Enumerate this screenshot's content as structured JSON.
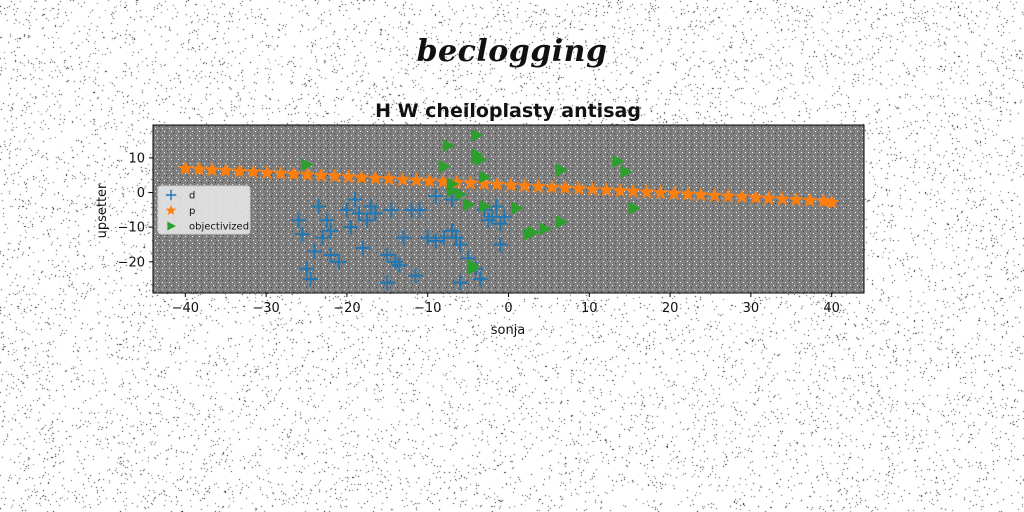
{
  "figure": {
    "suptitle": "beclogging"
  },
  "chart_data": {
    "type": "scatter",
    "title": "H W cheiloplasty antisag",
    "xlabel": "sonja",
    "ylabel": "upsetter",
    "xlim": [
      -44,
      44
    ],
    "ylim": [
      -29,
      19.5
    ],
    "xticks": [
      -40,
      -30,
      -20,
      -10,
      0,
      10,
      20,
      30,
      40
    ],
    "yticks": [
      -20,
      -10,
      0,
      10
    ],
    "plot_background": "#808080",
    "grid": false,
    "legend_position": "center-left",
    "series": [
      {
        "name": "d",
        "marker": "plus",
        "color": "#1f77b4",
        "points": [
          [
            -26,
            -8
          ],
          [
            -25.5,
            -12
          ],
          [
            -25,
            -22
          ],
          [
            -24.5,
            -25
          ],
          [
            -24,
            -17
          ],
          [
            -23.5,
            -4
          ],
          [
            -23,
            -13
          ],
          [
            -22.5,
            -8
          ],
          [
            -22,
            -11
          ],
          [
            -22,
            -18
          ],
          [
            -21,
            -20
          ],
          [
            -20,
            -5
          ],
          [
            -19.5,
            -10
          ],
          [
            -19,
            -2
          ],
          [
            -18.5,
            -6
          ],
          [
            -18,
            -16
          ],
          [
            -17.5,
            -8
          ],
          [
            -17,
            -4
          ],
          [
            -16.5,
            -6
          ],
          [
            -15,
            -18
          ],
          [
            -15,
            -26
          ],
          [
            -14.5,
            -5
          ],
          [
            -14,
            -20
          ],
          [
            -13.5,
            -21
          ],
          [
            -13,
            -13
          ],
          [
            -12,
            -5
          ],
          [
            -11.5,
            -24
          ],
          [
            -11,
            -5
          ],
          [
            -10,
            -13
          ],
          [
            -9,
            -14
          ],
          [
            -8,
            -13
          ],
          [
            -7,
            -11
          ],
          [
            -6.5,
            -13
          ],
          [
            -6,
            -15
          ],
          [
            -6,
            -26
          ],
          [
            -5,
            -19
          ],
          [
            -4,
            -22
          ],
          [
            -3.5,
            -25
          ],
          [
            -3,
            -5
          ],
          [
            -2.5,
            -8
          ],
          [
            -2,
            -7
          ],
          [
            -1.5,
            -4
          ],
          [
            -1,
            -15
          ],
          [
            -1,
            -9
          ],
          [
            -0.5,
            -7
          ],
          [
            -7,
            -2
          ],
          [
            -9,
            -1
          ]
        ]
      },
      {
        "name": "p",
        "marker": "star",
        "color": "#ff7f0e",
        "points": [
          [
            -40,
            6.9
          ],
          [
            -38.3,
            6.7
          ],
          [
            -36.7,
            6.5
          ],
          [
            -35,
            6.3
          ],
          [
            -33.3,
            6.1
          ],
          [
            -31.6,
            5.9
          ],
          [
            -29.9,
            5.7
          ],
          [
            -28.2,
            5.5
          ],
          [
            -26.6,
            5.3
          ],
          [
            -24.9,
            5.1
          ],
          [
            -23.2,
            4.9
          ],
          [
            -21.5,
            4.7
          ],
          [
            -19.8,
            4.5
          ],
          [
            -18.2,
            4.3
          ],
          [
            -16.5,
            4.1
          ],
          [
            -14.8,
            3.9
          ],
          [
            -13.1,
            3.7
          ],
          [
            -11.4,
            3.5
          ],
          [
            -9.8,
            3.3
          ],
          [
            -8.1,
            3.1
          ],
          [
            -6.4,
            2.9
          ],
          [
            -4.7,
            2.7
          ],
          [
            -3,
            2.5
          ],
          [
            -1.4,
            2.3
          ],
          [
            0.3,
            2.1
          ],
          [
            2,
            1.9
          ],
          [
            3.7,
            1.7
          ],
          [
            5.4,
            1.5
          ],
          [
            7,
            1.3
          ],
          [
            8.7,
            1.1
          ],
          [
            10.4,
            0.9
          ],
          [
            12.1,
            0.7
          ],
          [
            13.8,
            0.5
          ],
          [
            15.4,
            0.3
          ],
          [
            17.1,
            0.1
          ],
          [
            18.8,
            -0.1
          ],
          [
            20.5,
            -0.3
          ],
          [
            22.2,
            -0.5
          ],
          [
            23.8,
            -0.7
          ],
          [
            25.5,
            -0.9
          ],
          [
            27.2,
            -1.1
          ],
          [
            28.9,
            -1.3
          ],
          [
            30.6,
            -1.5
          ],
          [
            32.2,
            -1.7
          ],
          [
            33.9,
            -1.9
          ],
          [
            35.6,
            -2.1
          ],
          [
            37.3,
            -2.3
          ],
          [
            39,
            -2.5
          ],
          [
            40,
            -2.9
          ]
        ]
      },
      {
        "name": "objectivized",
        "marker": "triangle-right",
        "color": "#2ca02c",
        "points": [
          [
            -25,
            8
          ],
          [
            -8,
            7.5
          ],
          [
            -7.5,
            13.5
          ],
          [
            -7,
            0.5
          ],
          [
            -7,
            2.5
          ],
          [
            -6,
            -0.5
          ],
          [
            -5,
            -3.5
          ],
          [
            -4.5,
            -21
          ],
          [
            -4.5,
            -22
          ],
          [
            -4,
            16.5
          ],
          [
            -4,
            11
          ],
          [
            -4,
            10
          ],
          [
            -3.5,
            9.5
          ],
          [
            -3,
            4.5
          ],
          [
            -3,
            -4
          ],
          [
            1,
            -4.5
          ],
          [
            2.5,
            -12
          ],
          [
            3,
            -11.5
          ],
          [
            4.5,
            -10.5
          ],
          [
            6.5,
            6.5
          ],
          [
            6.5,
            -8.5
          ],
          [
            13.5,
            9
          ],
          [
            14.5,
            6
          ],
          [
            15.5,
            -4.5
          ]
        ]
      }
    ]
  }
}
